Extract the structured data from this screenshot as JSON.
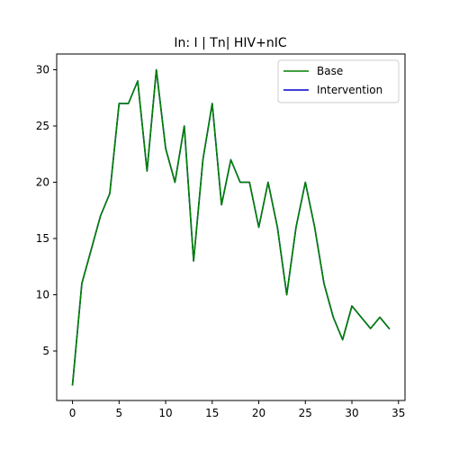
{
  "chart_data": {
    "type": "line",
    "title": "In: I | Tn| HIV+nIC",
    "xlabel": "",
    "ylabel": "",
    "xlim": [
      -1.7,
      35.7
    ],
    "ylim": [
      0.6,
      31.4
    ],
    "xticks": [
      0,
      5,
      10,
      15,
      20,
      25,
      30,
      35
    ],
    "yticks": [
      5,
      10,
      15,
      20,
      25,
      30
    ],
    "grid": false,
    "legend_position": "top-right",
    "x": [
      0,
      1,
      2,
      3,
      4,
      5,
      6,
      7,
      8,
      9,
      10,
      11,
      12,
      13,
      14,
      15,
      16,
      17,
      18,
      19,
      20,
      21,
      22,
      23,
      24,
      25,
      26,
      27,
      28,
      29,
      30,
      31,
      32,
      33,
      34
    ],
    "series": [
      {
        "name": "Base",
        "color": "#008000",
        "values": [
          2,
          11,
          14,
          17,
          19,
          27,
          27,
          29,
          21,
          30,
          23,
          20,
          25,
          13,
          22,
          27,
          18,
          22,
          20,
          20,
          16,
          20,
          16,
          10,
          16,
          20,
          16,
          11,
          8,
          6,
          9,
          8,
          7,
          8,
          7
        ]
      },
      {
        "name": "Intervention",
        "color": "#0000cc",
        "values": [
          2,
          11,
          14,
          17,
          19,
          27,
          27,
          29,
          21,
          30,
          23,
          20,
          25,
          13,
          22,
          27,
          18,
          22,
          20,
          20,
          16,
          20,
          16,
          10,
          16,
          20,
          16,
          11,
          8,
          6,
          9,
          8,
          7,
          8,
          7
        ]
      }
    ]
  }
}
